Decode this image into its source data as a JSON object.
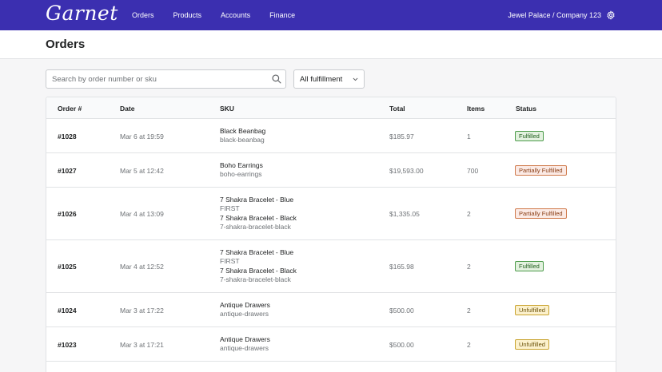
{
  "app": {
    "logo": "Garnet"
  },
  "nav": {
    "items": [
      "Orders",
      "Products",
      "Accounts",
      "Finance"
    ]
  },
  "account": {
    "label": "Jewel Palace / Company 123",
    "icon": "gear-icon"
  },
  "page": {
    "title": "Orders"
  },
  "search": {
    "placeholder": "Search by order number or sku",
    "value": ""
  },
  "filter": {
    "selected": "All fulfillment"
  },
  "table": {
    "headers": [
      "Order #",
      "Date",
      "SKU",
      "Total",
      "Items",
      "Status"
    ],
    "rows": [
      {
        "order": "#1028",
        "date": "Mar 6 at 19:59",
        "skus": [
          {
            "name": "Black Beanbag",
            "code": "black-beanbag"
          }
        ],
        "total": "$185.97",
        "items": "1",
        "status": "Fulfilled",
        "kind": "fulfilled"
      },
      {
        "order": "#1027",
        "date": "Mar 5 at 12:42",
        "skus": [
          {
            "name": "Boho Earrings",
            "code": "boho-earrings"
          }
        ],
        "total": "$19,593.00",
        "items": "700",
        "status": "Partially Fulfilled",
        "kind": "partial"
      },
      {
        "order": "#1026",
        "date": "Mar 4 at 13:09",
        "skus": [
          {
            "name": "7 Shakra Bracelet - Blue",
            "code": "FIRST"
          },
          {
            "name": "7 Shakra Bracelet - Black",
            "code": "7-shakra-bracelet-black"
          }
        ],
        "total": "$1,335.05",
        "items": "2",
        "status": "Partially Fulfilled",
        "kind": "partial"
      },
      {
        "order": "#1025",
        "date": "Mar 4 at 12:52",
        "skus": [
          {
            "name": "7 Shakra Bracelet - Blue",
            "code": "FIRST"
          },
          {
            "name": "7 Shakra Bracelet - Black",
            "code": "7-shakra-bracelet-black"
          }
        ],
        "total": "$165.98",
        "items": "2",
        "status": "Fulfilled",
        "kind": "fulfilled"
      },
      {
        "order": "#1024",
        "date": "Mar 3 at 17:22",
        "skus": [
          {
            "name": "Antique Drawers",
            "code": "antique-drawers"
          }
        ],
        "total": "$500.00",
        "items": "2",
        "status": "Unfulfilled",
        "kind": "unfulfilled"
      },
      {
        "order": "#1023",
        "date": "Mar 3 at 17:21",
        "skus": [
          {
            "name": "Antique Drawers",
            "code": "antique-drawers"
          }
        ],
        "total": "$500.00",
        "items": "2",
        "status": "Unfulfilled",
        "kind": "unfulfilled"
      }
    ]
  },
  "colors": {
    "topbar": "#3b2fb0",
    "fulfilled": "#4c9b4a",
    "partial": "#d07b4d",
    "unfulfilled": "#c9a32f"
  }
}
